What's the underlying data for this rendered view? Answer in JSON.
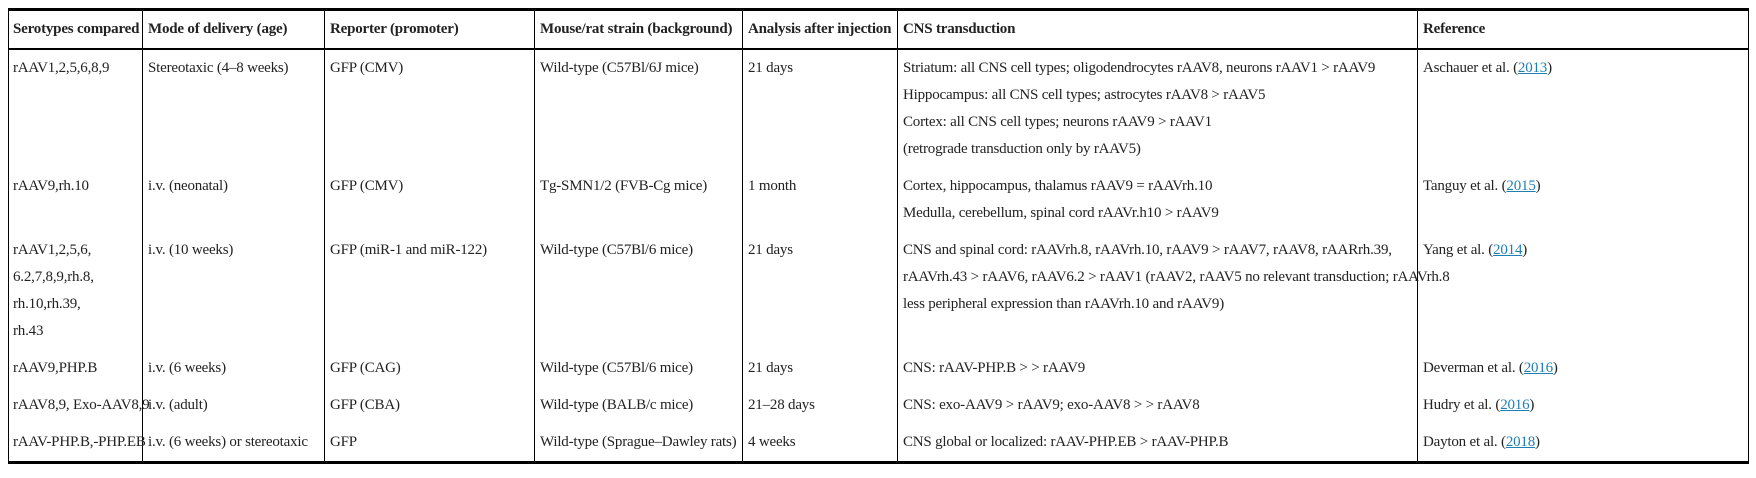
{
  "colors": {
    "link": "#1f7fb0",
    "text": "#222222",
    "border": "#000000"
  },
  "table": {
    "columns": [
      "Serotypes compared",
      "Mode of delivery (age)",
      "Reporter (promoter)",
      "Mouse/rat strain (background)",
      "Analysis after injection",
      "CNS transduction",
      "Reference"
    ],
    "rows": [
      {
        "serotype_lines": [
          "rAAV1,2,5,6,8,9"
        ],
        "delivery": "Stereotaxic (4–8 weeks)",
        "reporter": "GFP (CMV)",
        "strain": "Wild-type (C57Bl/6J mice)",
        "analysis": "21 days",
        "cns_lines": [
          "Striatum: all CNS cell types; oligodendrocytes rAAV8, neurons rAAV1 > rAAV9",
          "Hippocampus: all CNS cell types; astrocytes rAAV8 > rAAV5",
          "Cortex: all CNS cell types; neurons rAAV9 > rAAV1",
          "(retrograde transduction only by rAAV5)"
        ],
        "reference": {
          "pre": "Aschauer et al. (",
          "year": "2013",
          "post": ")"
        }
      },
      {
        "serotype_lines": [
          "rAAV9,rh.10"
        ],
        "delivery": "i.v. (neonatal)",
        "reporter": "GFP (CMV)",
        "strain": "Tg-SMN1/2 (FVB-Cg mice)",
        "analysis": "1 month",
        "cns_lines": [
          "Cortex, hippocampus, thalamus rAAV9 = rAAVrh.10",
          "Medulla, cerebellum, spinal cord rAAVr.h10 > rAAV9"
        ],
        "reference": {
          "pre": "Tanguy et al. (",
          "year": "2015",
          "post": ")"
        }
      },
      {
        "serotype_lines": [
          "rAAV1,2,5,6,",
          "6.2,7,8,9,rh.8,",
          "rh.10,rh.39,",
          "rh.43"
        ],
        "delivery": "i.v. (10 weeks)",
        "reporter": "GFP (miR-1 and miR-122)",
        "strain": "Wild-type (C57Bl/6 mice)",
        "analysis": "21 days",
        "cns_lines": [
          "CNS and spinal cord: rAAVrh.8, rAAVrh.10, rAAV9 > rAAV7, rAAV8, rAARrh.39,",
          "rAAVrh.43 > rAAV6, rAAV6.2 > rAAV1 (rAAV2, rAAV5 no relevant transduction; rAAVrh.8",
          "less peripheral expression than rAAVrh.10 and rAAV9)"
        ],
        "reference": {
          "pre": "Yang et al. (",
          "year": "2014",
          "post": ")"
        }
      },
      {
        "serotype_lines": [
          "rAAV9,PHP.B"
        ],
        "delivery": "i.v. (6 weeks)",
        "reporter": "GFP (CAG)",
        "strain": "Wild-type (C57Bl/6 mice)",
        "analysis": "21 days",
        "cns_lines": [
          "CNS: rAAV-PHP.B > > rAAV9"
        ],
        "reference": {
          "pre": "Deverman et al. (",
          "year": "2016",
          "post": ")"
        }
      },
      {
        "serotype_lines": [
          "rAAV8,9, Exo-AAV8,9"
        ],
        "delivery": "i.v. (adult)",
        "reporter": "GFP (CBA)",
        "strain": "Wild-type (BALB/c mice)",
        "analysis": "21–28 days",
        "cns_lines": [
          "CNS: exo-AAV9 > rAAV9; exo-AAV8 > > rAAV8"
        ],
        "reference": {
          "pre": "Hudry et al. (",
          "year": "2016",
          "post": ")"
        }
      },
      {
        "serotype_lines": [
          "rAAV-PHP.B,-PHP.EB"
        ],
        "delivery": "i.v. (6 weeks) or stereotaxic",
        "reporter": "GFP",
        "strain": "Wild-type (Sprague–Dawley rats)",
        "analysis": "4 weeks",
        "cns_lines": [
          "CNS global or localized: rAAV-PHP.EB > rAAV-PHP.B"
        ],
        "reference": {
          "pre": "Dayton et al. (",
          "year": "2018",
          "post": ")"
        }
      }
    ]
  }
}
